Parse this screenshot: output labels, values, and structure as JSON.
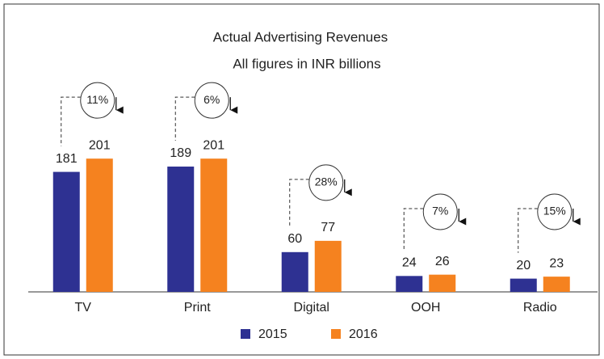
{
  "chart_data": {
    "type": "bar",
    "title": "Actual Advertising Revenues",
    "subtitle": "All figures in INR billions",
    "categories": [
      "TV",
      "Print",
      "Digital",
      "OOH",
      "Radio"
    ],
    "series": [
      {
        "name": "2015",
        "color": "#2e3192",
        "values": [
          181,
          189,
          60,
          24,
          20
        ]
      },
      {
        "name": "2016",
        "color": "#f5821f",
        "values": [
          201,
          201,
          77,
          26,
          23
        ]
      }
    ],
    "annotations": [
      "11%",
      "6%",
      "28%",
      "7%",
      "15%"
    ],
    "ylim": [
      0,
      250
    ],
    "legend": "bottom"
  }
}
